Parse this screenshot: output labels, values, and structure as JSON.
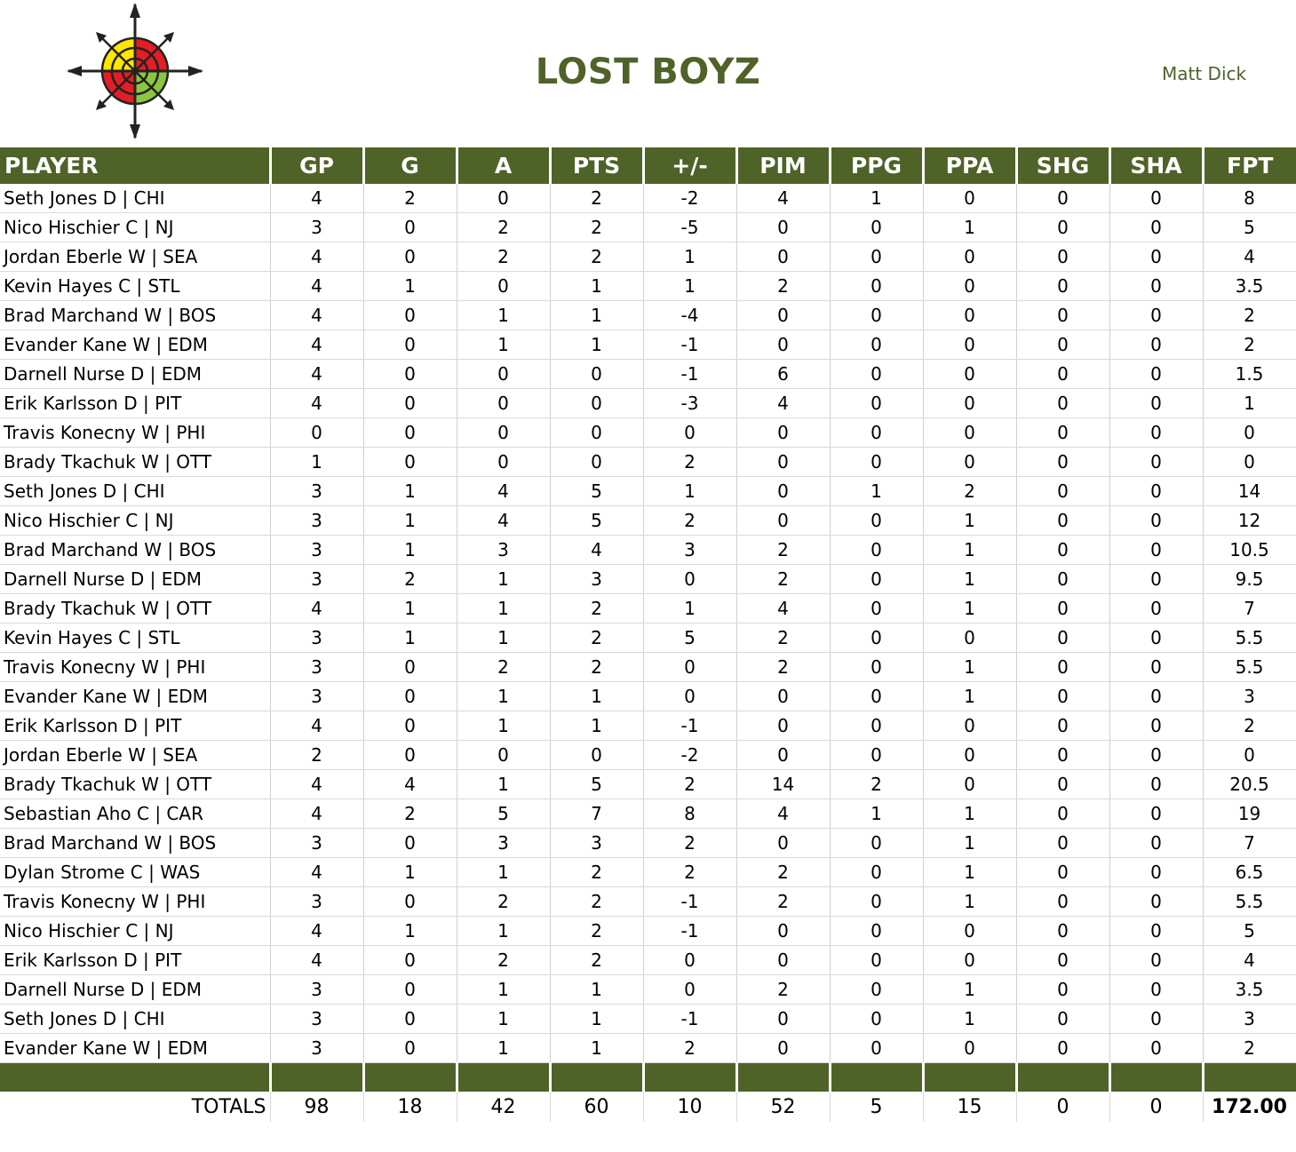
{
  "team": {
    "name": "LOST BOYZ",
    "owner": "Matt Dick"
  },
  "columns": [
    "PLAYER",
    "GP",
    "G",
    "A",
    "PTS",
    "+/-",
    "PIM",
    "PPG",
    "PPA",
    "SHG",
    "SHA",
    "FPT"
  ],
  "groups": [
    [
      {
        "player": "Seth Jones D | CHI",
        "gp": "4",
        "g": "2",
        "a": "0",
        "pts": "2",
        "pm": "-2",
        "pim": "4",
        "ppg": "1",
        "ppa": "0",
        "shg": "0",
        "sha": "0",
        "fpt": "8"
      },
      {
        "player": "Nico Hischier C | NJ",
        "gp": "3",
        "g": "0",
        "a": "2",
        "pts": "2",
        "pm": "-5",
        "pim": "0",
        "ppg": "0",
        "ppa": "1",
        "shg": "0",
        "sha": "0",
        "fpt": "5"
      },
      {
        "player": "Jordan Eberle W | SEA",
        "gp": "4",
        "g": "0",
        "a": "2",
        "pts": "2",
        "pm": "1",
        "pim": "0",
        "ppg": "0",
        "ppa": "0",
        "shg": "0",
        "sha": "0",
        "fpt": "4"
      },
      {
        "player": "Kevin Hayes C | STL",
        "gp": "4",
        "g": "1",
        "a": "0",
        "pts": "1",
        "pm": "1",
        "pim": "2",
        "ppg": "0",
        "ppa": "0",
        "shg": "0",
        "sha": "0",
        "fpt": "3.5"
      },
      {
        "player": "Brad Marchand W | BOS",
        "gp": "4",
        "g": "0",
        "a": "1",
        "pts": "1",
        "pm": "-4",
        "pim": "0",
        "ppg": "0",
        "ppa": "0",
        "shg": "0",
        "sha": "0",
        "fpt": "2"
      },
      {
        "player": "Evander Kane W | EDM",
        "gp": "4",
        "g": "0",
        "a": "1",
        "pts": "1",
        "pm": "-1",
        "pim": "0",
        "ppg": "0",
        "ppa": "0",
        "shg": "0",
        "sha": "0",
        "fpt": "2"
      },
      {
        "player": "Darnell Nurse D | EDM",
        "gp": "4",
        "g": "0",
        "a": "0",
        "pts": "0",
        "pm": "-1",
        "pim": "6",
        "ppg": "0",
        "ppa": "0",
        "shg": "0",
        "sha": "0",
        "fpt": "1.5"
      },
      {
        "player": "Erik Karlsson D | PIT",
        "gp": "4",
        "g": "0",
        "a": "0",
        "pts": "0",
        "pm": "-3",
        "pim": "4",
        "ppg": "0",
        "ppa": "0",
        "shg": "0",
        "sha": "0",
        "fpt": "1"
      },
      {
        "player": "Travis Konecny W | PHI",
        "gp": "0",
        "g": "0",
        "a": "0",
        "pts": "0",
        "pm": "0",
        "pim": "0",
        "ppg": "0",
        "ppa": "0",
        "shg": "0",
        "sha": "0",
        "fpt": "0"
      },
      {
        "player": "Brady Tkachuk W | OTT",
        "gp": "1",
        "g": "0",
        "a": "0",
        "pts": "0",
        "pm": "2",
        "pim": "0",
        "ppg": "0",
        "ppa": "0",
        "shg": "0",
        "sha": "0",
        "fpt": "0"
      }
    ],
    [
      {
        "player": "Seth Jones D | CHI",
        "gp": "3",
        "g": "1",
        "a": "4",
        "pts": "5",
        "pm": "1",
        "pim": "0",
        "ppg": "1",
        "ppa": "2",
        "shg": "0",
        "sha": "0",
        "fpt": "14"
      },
      {
        "player": "Nico Hischier C | NJ",
        "gp": "3",
        "g": "1",
        "a": "4",
        "pts": "5",
        "pm": "2",
        "pim": "0",
        "ppg": "0",
        "ppa": "1",
        "shg": "0",
        "sha": "0",
        "fpt": "12"
      },
      {
        "player": "Brad Marchand W | BOS",
        "gp": "3",
        "g": "1",
        "a": "3",
        "pts": "4",
        "pm": "3",
        "pim": "2",
        "ppg": "0",
        "ppa": "1",
        "shg": "0",
        "sha": "0",
        "fpt": "10.5"
      },
      {
        "player": "Darnell Nurse D | EDM",
        "gp": "3",
        "g": "2",
        "a": "1",
        "pts": "3",
        "pm": "0",
        "pim": "2",
        "ppg": "0",
        "ppa": "1",
        "shg": "0",
        "sha": "0",
        "fpt": "9.5"
      },
      {
        "player": "Brady Tkachuk W | OTT",
        "gp": "4",
        "g": "1",
        "a": "1",
        "pts": "2",
        "pm": "1",
        "pim": "4",
        "ppg": "0",
        "ppa": "1",
        "shg": "0",
        "sha": "0",
        "fpt": "7"
      },
      {
        "player": "Kevin Hayes C | STL",
        "gp": "3",
        "g": "1",
        "a": "1",
        "pts": "2",
        "pm": "5",
        "pim": "2",
        "ppg": "0",
        "ppa": "0",
        "shg": "0",
        "sha": "0",
        "fpt": "5.5"
      },
      {
        "player": "Travis Konecny W | PHI",
        "gp": "3",
        "g": "0",
        "a": "2",
        "pts": "2",
        "pm": "0",
        "pim": "2",
        "ppg": "0",
        "ppa": "1",
        "shg": "0",
        "sha": "0",
        "fpt": "5.5"
      },
      {
        "player": "Evander Kane W | EDM",
        "gp": "3",
        "g": "0",
        "a": "1",
        "pts": "1",
        "pm": "0",
        "pim": "0",
        "ppg": "0",
        "ppa": "1",
        "shg": "0",
        "sha": "0",
        "fpt": "3"
      },
      {
        "player": "Erik Karlsson D | PIT",
        "gp": "4",
        "g": "0",
        "a": "1",
        "pts": "1",
        "pm": "-1",
        "pim": "0",
        "ppg": "0",
        "ppa": "0",
        "shg": "0",
        "sha": "0",
        "fpt": "2"
      },
      {
        "player": "Jordan Eberle W | SEA",
        "gp": "2",
        "g": "0",
        "a": "0",
        "pts": "0",
        "pm": "-2",
        "pim": "0",
        "ppg": "0",
        "ppa": "0",
        "shg": "0",
        "sha": "0",
        "fpt": "0"
      }
    ],
    [
      {
        "player": "Brady Tkachuk W | OTT",
        "gp": "4",
        "g": "4",
        "a": "1",
        "pts": "5",
        "pm": "2",
        "pim": "14",
        "ppg": "2",
        "ppa": "0",
        "shg": "0",
        "sha": "0",
        "fpt": "20.5"
      },
      {
        "player": "Sebastian Aho C | CAR",
        "gp": "4",
        "g": "2",
        "a": "5",
        "pts": "7",
        "pm": "8",
        "pim": "4",
        "ppg": "1",
        "ppa": "1",
        "shg": "0",
        "sha": "0",
        "fpt": "19"
      },
      {
        "player": "Brad Marchand W | BOS",
        "gp": "3",
        "g": "0",
        "a": "3",
        "pts": "3",
        "pm": "2",
        "pim": "0",
        "ppg": "0",
        "ppa": "1",
        "shg": "0",
        "sha": "0",
        "fpt": "7"
      },
      {
        "player": "Dylan Strome C | WAS",
        "gp": "4",
        "g": "1",
        "a": "1",
        "pts": "2",
        "pm": "2",
        "pim": "2",
        "ppg": "0",
        "ppa": "1",
        "shg": "0",
        "sha": "0",
        "fpt": "6.5"
      },
      {
        "player": "Travis Konecny W | PHI",
        "gp": "3",
        "g": "0",
        "a": "2",
        "pts": "2",
        "pm": "-1",
        "pim": "2",
        "ppg": "0",
        "ppa": "1",
        "shg": "0",
        "sha": "0",
        "fpt": "5.5"
      },
      {
        "player": "Nico Hischier C | NJ",
        "gp": "4",
        "g": "1",
        "a": "1",
        "pts": "2",
        "pm": "-1",
        "pim": "0",
        "ppg": "0",
        "ppa": "0",
        "shg": "0",
        "sha": "0",
        "fpt": "5"
      },
      {
        "player": "Erik Karlsson D | PIT",
        "gp": "4",
        "g": "0",
        "a": "2",
        "pts": "2",
        "pm": "0",
        "pim": "0",
        "ppg": "0",
        "ppa": "0",
        "shg": "0",
        "sha": "0",
        "fpt": "4"
      },
      {
        "player": "Darnell Nurse D | EDM",
        "gp": "3",
        "g": "0",
        "a": "1",
        "pts": "1",
        "pm": "0",
        "pim": "2",
        "ppg": "0",
        "ppa": "1",
        "shg": "0",
        "sha": "0",
        "fpt": "3.5"
      },
      {
        "player": "Seth Jones D | CHI",
        "gp": "3",
        "g": "0",
        "a": "1",
        "pts": "1",
        "pm": "-1",
        "pim": "0",
        "ppg": "0",
        "ppa": "1",
        "shg": "0",
        "sha": "0",
        "fpt": "3"
      },
      {
        "player": "Evander Kane W | EDM",
        "gp": "3",
        "g": "0",
        "a": "1",
        "pts": "1",
        "pm": "2",
        "pim": "0",
        "ppg": "0",
        "ppa": "0",
        "shg": "0",
        "sha": "0",
        "fpt": "2"
      }
    ]
  ],
  "totals": {
    "label": "TOTALS",
    "gp": "98",
    "g": "18",
    "a": "42",
    "pts": "60",
    "pm": "10",
    "pim": "52",
    "ppg": "5",
    "ppa": "15",
    "shg": "0",
    "sha": "0",
    "fpt": "172.00"
  },
  "colors": {
    "header_green": "#4f6228",
    "title_green": "#4f6228"
  },
  "icons": {
    "logo": "compass-rose-icon"
  }
}
